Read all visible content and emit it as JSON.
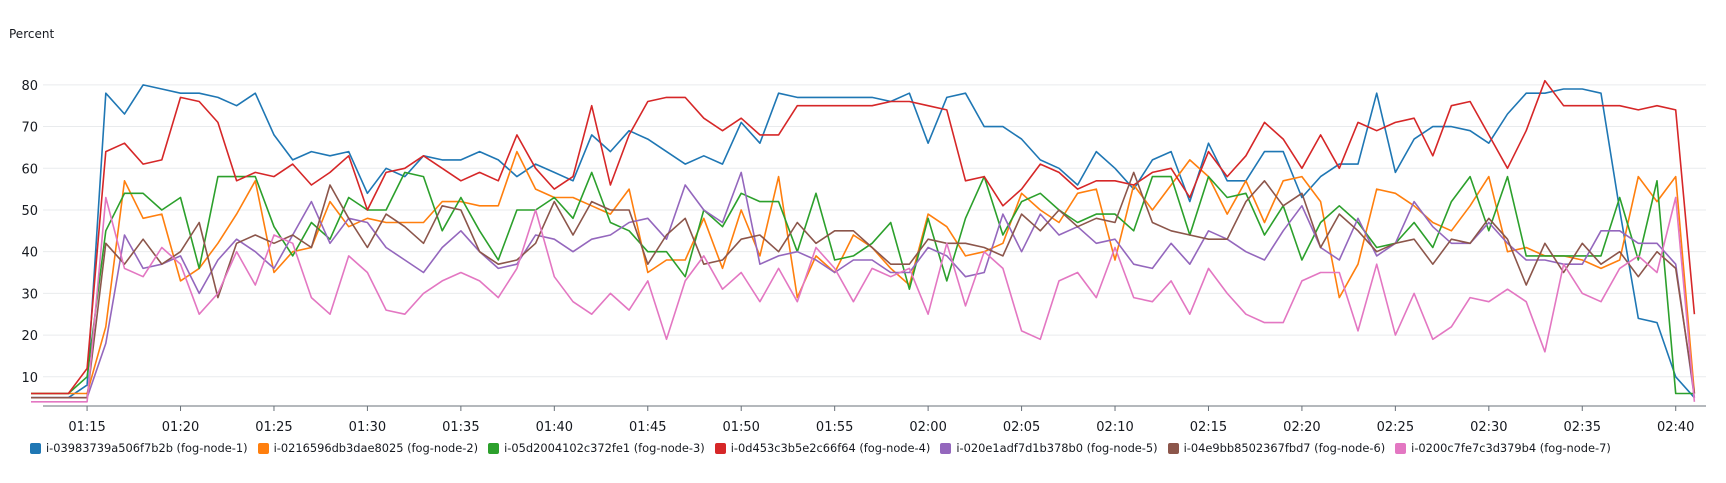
{
  "chart_data": {
    "type": "line",
    "ylabel": "Percent",
    "ylim": [
      3,
      85
    ],
    "yticks": [
      10,
      20,
      30,
      40,
      50,
      60,
      70,
      80
    ],
    "grid": true,
    "legend_position": "bottom",
    "x_start": "01:12",
    "x_step_minutes": 1,
    "x": [
      "01:12",
      "01:13",
      "01:14",
      "01:15",
      "01:16",
      "01:17",
      "01:18",
      "01:19",
      "01:20",
      "01:21",
      "01:22",
      "01:23",
      "01:24",
      "01:25",
      "01:26",
      "01:27",
      "01:28",
      "01:29",
      "01:30",
      "01:31",
      "01:32",
      "01:33",
      "01:34",
      "01:35",
      "01:36",
      "01:37",
      "01:38",
      "01:39",
      "01:40",
      "01:41",
      "01:42",
      "01:43",
      "01:44",
      "01:45",
      "01:46",
      "01:47",
      "01:48",
      "01:49",
      "01:50",
      "01:51",
      "01:52",
      "01:53",
      "01:54",
      "01:55",
      "01:56",
      "01:57",
      "01:58",
      "01:59",
      "02:00",
      "02:01",
      "02:02",
      "02:03",
      "02:04",
      "02:05",
      "02:06",
      "02:07",
      "02:08",
      "02:09",
      "02:10",
      "02:11",
      "02:12",
      "02:13",
      "02:14",
      "02:15",
      "02:16",
      "02:17",
      "02:18",
      "02:19",
      "02:20",
      "02:21",
      "02:22",
      "02:23",
      "02:24",
      "02:25",
      "02:26",
      "02:27",
      "02:28",
      "02:29",
      "02:30",
      "02:31",
      "02:32",
      "02:33",
      "02:34",
      "02:35",
      "02:36",
      "02:37",
      "02:38",
      "02:39",
      "02:40",
      "02:41"
    ],
    "xticks": [
      "01:15",
      "01:20",
      "01:25",
      "01:30",
      "01:35",
      "01:40",
      "01:45",
      "01:50",
      "01:55",
      "02:00",
      "02:05",
      "02:10",
      "02:15",
      "02:20",
      "02:25",
      "02:30",
      "02:35",
      "02:40"
    ],
    "series": [
      {
        "name": "i-03983739a506f7b2b (fog-node-1)",
        "color": "#1f77b4",
        "values": [
          5,
          5,
          5,
          8,
          78,
          73,
          80,
          79,
          78,
          78,
          77,
          75,
          78,
          68,
          62,
          64,
          63,
          64,
          54,
          60,
          58,
          63,
          62,
          62,
          64,
          62,
          58,
          61,
          59,
          57,
          68,
          64,
          69,
          67,
          64,
          61,
          63,
          61,
          71,
          66,
          78,
          77,
          77,
          77,
          77,
          77,
          76,
          78,
          66,
          77,
          78,
          70,
          70,
          67,
          62,
          60,
          56,
          64,
          60,
          55,
          62,
          64,
          52,
          66,
          57,
          57,
          64,
          64,
          53,
          58,
          61,
          61,
          78,
          59,
          67,
          70,
          70,
          69,
          66,
          73,
          78,
          78,
          79,
          79,
          78,
          50,
          24,
          23,
          10,
          5
        ]
      },
      {
        "name": "i-0216596db3dae8025 (fog-node-2)",
        "color": "#ff7f0e",
        "values": [
          6,
          6,
          6,
          6,
          22,
          57,
          48,
          49,
          33,
          36,
          42,
          49,
          57,
          35,
          40,
          41,
          52,
          46,
          48,
          47,
          47,
          47,
          52,
          52,
          51,
          51,
          64,
          55,
          53,
          53,
          51,
          49,
          55,
          35,
          38,
          38,
          48,
          36,
          50,
          39,
          58,
          29,
          39,
          35,
          44,
          41,
          36,
          32,
          49,
          46,
          39,
          40,
          42,
          54,
          50,
          47,
          54,
          55,
          38,
          56,
          50,
          56,
          62,
          58,
          49,
          57,
          47,
          57,
          58,
          52,
          29,
          37,
          55,
          54,
          51,
          47,
          45,
          51,
          58,
          40,
          41,
          39,
          39,
          38,
          36,
          38,
          58,
          52,
          58,
          6
        ]
      },
      {
        "name": "i-05d2004102c372fe1 (fog-node-3)",
        "color": "#2ca02c",
        "values": [
          6,
          6,
          6,
          10,
          45,
          54,
          54,
          50,
          53,
          36,
          58,
          58,
          58,
          46,
          39,
          47,
          43,
          53,
          50,
          50,
          59,
          58,
          45,
          53,
          45,
          38,
          50,
          50,
          53,
          48,
          59,
          47,
          45,
          40,
          40,
          34,
          50,
          46,
          54,
          52,
          52,
          40,
          54,
          38,
          39,
          42,
          47,
          31,
          48,
          33,
          48,
          58,
          44,
          52,
          54,
          50,
          47,
          49,
          49,
          45,
          58,
          58,
          44,
          58,
          53,
          54,
          44,
          51,
          38,
          47,
          51,
          47,
          41,
          42,
          47,
          41,
          52,
          58,
          45,
          58,
          39,
          39,
          39,
          39,
          39,
          53,
          38,
          57,
          6,
          6
        ]
      },
      {
        "name": "i-0d453c3b5e2c66f64 (fog-node-4)",
        "color": "#d62728",
        "values": [
          6,
          6,
          6,
          12,
          64,
          66,
          61,
          62,
          77,
          76,
          71,
          57,
          59,
          58,
          61,
          56,
          59,
          63,
          50,
          59,
          60,
          63,
          60,
          57,
          59,
          57,
          68,
          60,
          55,
          58,
          75,
          56,
          68,
          76,
          77,
          77,
          72,
          69,
          72,
          68,
          68,
          75,
          75,
          75,
          75,
          75,
          76,
          76,
          75,
          74,
          57,
          58,
          51,
          55,
          61,
          59,
          55,
          57,
          57,
          56,
          59,
          60,
          53,
          64,
          58,
          63,
          71,
          67,
          60,
          68,
          60,
          71,
          69,
          71,
          72,
          63,
          75,
          76,
          68,
          60,
          69,
          81,
          75,
          75,
          75,
          75,
          74,
          75,
          74,
          25
        ]
      },
      {
        "name": "i-020e1adf7d1b378b0 (fog-node-5)",
        "color": "#9467bd",
        "values": [
          5,
          5,
          5,
          5,
          18,
          44,
          36,
          37,
          39,
          30,
          38,
          43,
          40,
          36,
          44,
          52,
          42,
          48,
          47,
          41,
          38,
          35,
          41,
          45,
          40,
          36,
          37,
          44,
          43,
          40,
          43,
          44,
          47,
          48,
          43,
          56,
          50,
          47,
          59,
          37,
          39,
          40,
          38,
          35,
          38,
          38,
          35,
          35,
          41,
          39,
          34,
          35,
          49,
          40,
          49,
          44,
          46,
          42,
          43,
          37,
          36,
          42,
          37,
          45,
          43,
          40,
          38,
          45,
          51,
          41,
          38,
          48,
          39,
          42,
          52,
          46,
          42,
          42,
          47,
          42,
          38,
          38,
          37,
          37,
          45,
          45,
          42,
          42,
          37,
          5
        ]
      },
      {
        "name": "i-04e9bb8502367fbd7 (fog-node-6)",
        "color": "#8c564b",
        "values": [
          5,
          5,
          5,
          5,
          42,
          37,
          43,
          37,
          40,
          47,
          29,
          42,
          44,
          42,
          44,
          41,
          56,
          48,
          41,
          49,
          46,
          42,
          51,
          50,
          40,
          37,
          38,
          42,
          52,
          44,
          52,
          50,
          50,
          37,
          44,
          48,
          37,
          38,
          43,
          44,
          40,
          47,
          42,
          45,
          45,
          41,
          37,
          37,
          43,
          42,
          42,
          41,
          39,
          49,
          45,
          50,
          46,
          48,
          47,
          59,
          47,
          45,
          44,
          43,
          43,
          52,
          57,
          51,
          54,
          41,
          49,
          45,
          40,
          42,
          43,
          37,
          43,
          42,
          48,
          43,
          32,
          42,
          35,
          42,
          37,
          40,
          34,
          40,
          36,
          6
        ]
      },
      {
        "name": "i-0200c7fe7c3d379b4 (fog-node-7)",
        "color": "#e377c2",
        "values": [
          4,
          4,
          4,
          4,
          53,
          36,
          34,
          41,
          37,
          25,
          30,
          40,
          32,
          44,
          42,
          29,
          25,
          39,
          35,
          26,
          25,
          30,
          33,
          35,
          33,
          29,
          36,
          50,
          34,
          28,
          25,
          30,
          26,
          33,
          19,
          33,
          39,
          31,
          35,
          28,
          36,
          28,
          41,
          36,
          28,
          36,
          34,
          36,
          25,
          42,
          27,
          40,
          36,
          21,
          19,
          33,
          35,
          29,
          41,
          29,
          28,
          33,
          25,
          36,
          30,
          25,
          23,
          23,
          33,
          35,
          35,
          21,
          37,
          20,
          30,
          19,
          22,
          29,
          28,
          31,
          28,
          16,
          37,
          30,
          28,
          36,
          39,
          35,
          53,
          4
        ]
      }
    ]
  }
}
